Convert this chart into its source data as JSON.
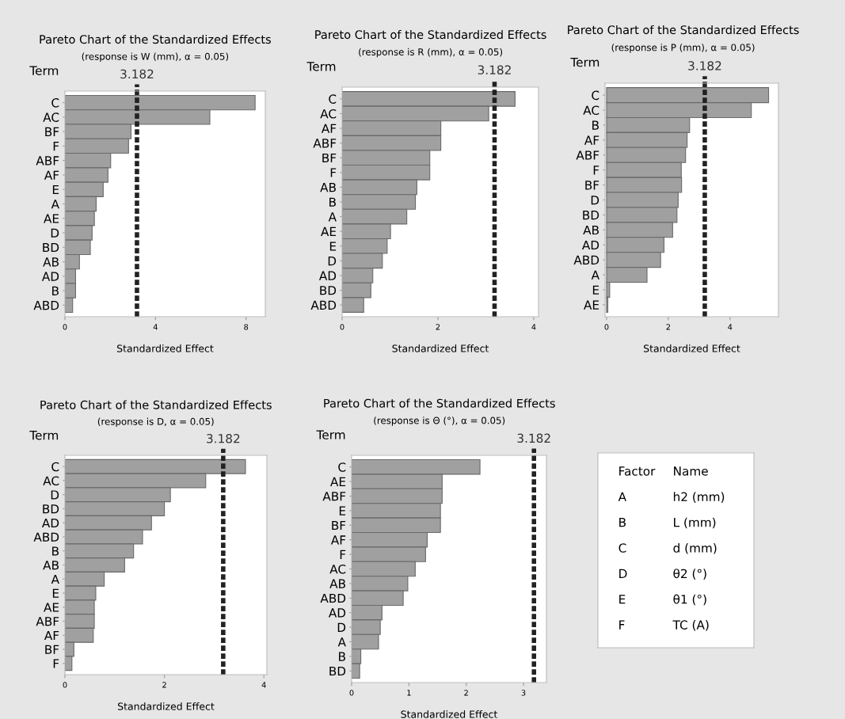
{
  "chart_data": [
    {
      "type": "bar",
      "orientation": "horizontal",
      "title": "Pareto Chart of the Standardized Effects",
      "subtitle": "(response is W (mm), α = 0.05)",
      "xlabel": "Standardized Effect",
      "ylabel": "Term",
      "color": "#a0a0a0",
      "grid": false,
      "legend": false,
      "categories": [
        "C",
        "AC",
        "BF",
        "F",
        "ABF",
        "AF",
        "E",
        "A",
        "AE",
        "D",
        "BD",
        "AB",
        "AD",
        "B",
        "ABD"
      ],
      "values": [
        8.4,
        6.4,
        2.92,
        2.81,
        2.02,
        1.9,
        1.69,
        1.38,
        1.3,
        1.2,
        1.12,
        0.64,
        0.47,
        0.47,
        0.34
      ],
      "xlim": [
        0,
        8.85
      ],
      "xticks": [
        0,
        4,
        8
      ],
      "ref_lines": [
        {
          "axis": "x",
          "value": 3.182,
          "label": "3.182",
          "color": "#222222",
          "line_style": "dashed"
        }
      ]
    },
    {
      "type": "bar",
      "orientation": "horizontal",
      "title": "Pareto Chart of the Standardized Effects",
      "subtitle": "(response is R (mm), α = 0.05)",
      "xlabel": "Standardized Effect",
      "ylabel": "Term",
      "color": "#a0a0a0",
      "grid": false,
      "legend": false,
      "categories": [
        "C",
        "AC",
        "AF",
        "ABF",
        "BF",
        "F",
        "AB",
        "B",
        "A",
        "AE",
        "E",
        "D",
        "AD",
        "BD",
        "ABD"
      ],
      "values": [
        3.61,
        3.06,
        2.06,
        2.06,
        1.83,
        1.83,
        1.56,
        1.53,
        1.35,
        1.01,
        0.94,
        0.84,
        0.64,
        0.6,
        0.45
      ],
      "xlim": [
        0,
        4.1
      ],
      "xticks": [
        0,
        2,
        4
      ],
      "ref_lines": [
        {
          "axis": "x",
          "value": 3.182,
          "label": "3.182",
          "color": "#222222",
          "line_style": "dashed"
        }
      ]
    },
    {
      "type": "bar",
      "orientation": "horizontal",
      "title": "Pareto Chart of the Standardized Effects",
      "subtitle": "(response is P (mm), α = 0.05)",
      "xlabel": "Standardized Effect",
      "ylabel": "Term",
      "color": "#a0a0a0",
      "grid": false,
      "legend": false,
      "categories": [
        "C",
        "AC",
        "B",
        "AF",
        "ABF",
        "F",
        "BF",
        "D",
        "BD",
        "AB",
        "AD",
        "ABD",
        "A",
        "E",
        "AE"
      ],
      "values": [
        5.25,
        4.69,
        2.69,
        2.61,
        2.56,
        2.42,
        2.43,
        2.32,
        2.28,
        2.14,
        1.86,
        1.75,
        1.31,
        0.1,
        0.04
      ],
      "xlim": [
        -0.05,
        5.57
      ],
      "xticks": [
        0,
        2,
        4
      ],
      "ref_lines": [
        {
          "axis": "x",
          "value": 3.182,
          "label": "3.182",
          "color": "#222222",
          "line_style": "dashed"
        }
      ]
    },
    {
      "type": "bar",
      "orientation": "horizontal",
      "title": "Pareto Chart of the Standardized Effects",
      "subtitle": "(response is D, α = 0.05)",
      "xlabel": "Standardized Effect",
      "ylabel": "Term",
      "color": "#a0a0a0",
      "grid": false,
      "legend": false,
      "categories": [
        "C",
        "AC",
        "D",
        "BD",
        "AD",
        "ABD",
        "B",
        "AB",
        "A",
        "E",
        "AE",
        "ABF",
        "AF",
        "BF",
        "F"
      ],
      "values": [
        3.63,
        2.83,
        2.12,
        2.0,
        1.74,
        1.56,
        1.38,
        1.2,
        0.79,
        0.62,
        0.59,
        0.59,
        0.57,
        0.18,
        0.14
      ],
      "xlim": [
        0,
        4.06
      ],
      "xticks": [
        0,
        2,
        4
      ],
      "ref_lines": [
        {
          "axis": "x",
          "value": 3.182,
          "label": "3.182",
          "color": "#222222",
          "line_style": "dashed"
        }
      ]
    },
    {
      "type": "bar",
      "orientation": "horizontal",
      "title": "Pareto Chart of the Standardized Effects",
      "subtitle": "(response is Θ (°), α = 0.05)",
      "xlabel": "Standardized Effect",
      "ylabel": "Term",
      "color": "#a0a0a0",
      "grid": false,
      "legend": false,
      "categories": [
        "C",
        "AE",
        "ABF",
        "E",
        "BF",
        "AF",
        "F",
        "AC",
        "AB",
        "ABD",
        "AD",
        "D",
        "A",
        "B",
        "BD"
      ],
      "values": [
        2.24,
        1.58,
        1.58,
        1.55,
        1.55,
        1.32,
        1.29,
        1.11,
        0.98,
        0.9,
        0.53,
        0.5,
        0.47,
        0.16,
        0.14
      ],
      "xlim": [
        0,
        3.4
      ],
      "xticks": [
        0,
        1,
        2,
        3
      ],
      "ref_lines": [
        {
          "axis": "x",
          "value": 3.182,
          "label": "3.182",
          "color": "#222222",
          "line_style": "dashed"
        }
      ]
    },
    {
      "type": "other",
      "annotations": [
        "Factor",
        "Name",
        "A",
        "h2 (mm)",
        "B",
        "L (mm)",
        "C",
        "d (mm)",
        "D",
        "θ2 (°)",
        "E",
        "θ1 (°)",
        "F",
        "TC (A)"
      ]
    }
  ]
}
